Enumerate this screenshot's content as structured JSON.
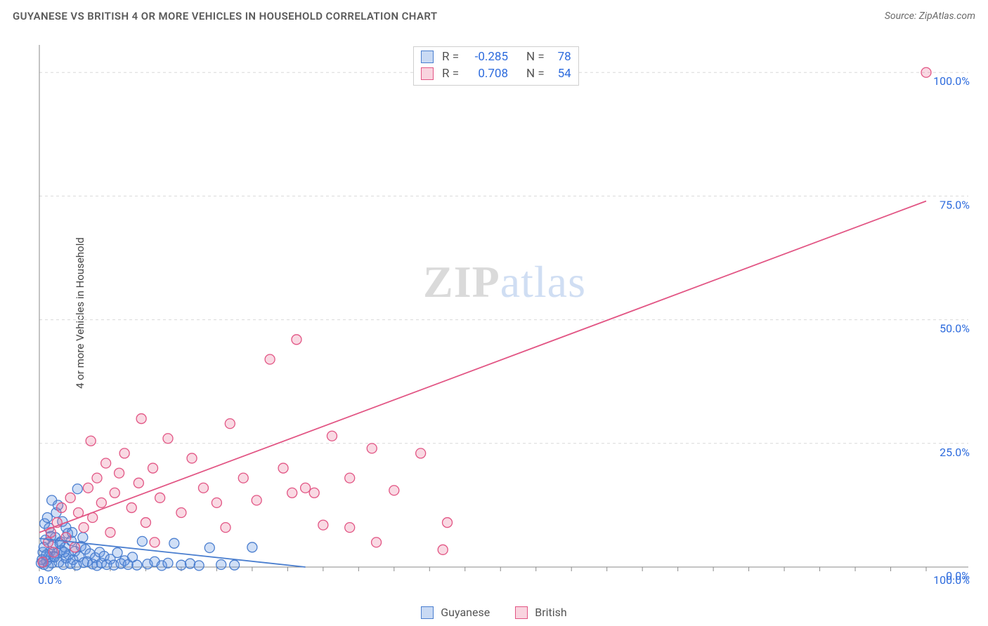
{
  "header": {
    "title": "GUYANESE VS BRITISH 4 OR MORE VEHICLES IN HOUSEHOLD CORRELATION CHART",
    "source_prefix": "Source: ",
    "source": "ZipAtlas.com"
  },
  "chart": {
    "type": "scatter",
    "xlim": [
      0,
      100
    ],
    "ylim": [
      0,
      105
    ],
    "y_ticks": [
      0,
      25,
      50,
      75,
      100
    ],
    "x_ticks": [
      0,
      100
    ],
    "y_tick_labels": [
      "0.0%",
      "25.0%",
      "50.0%",
      "75.0%",
      "100.0%"
    ],
    "x_tick_labels": [
      "0.0%",
      "100.0%"
    ],
    "x_minor_tick_step": 4,
    "y_axis_label": "4 or more Vehicles in Household",
    "tick_label_color": "#2d6bdd",
    "background_color": "#ffffff",
    "grid_color": "#d9d9d9",
    "axis_color": "#8a8a8a",
    "marker_radius": 7,
    "marker_stroke_width": 1.3,
    "marker_fill_opacity": 0.28,
    "line_width": 1.8,
    "watermark": {
      "part1": "ZIP",
      "part2": "atlas"
    },
    "stats_box": {
      "rows": [
        {
          "r_label": "R =",
          "r_value": "-0.285",
          "n_label": "N =",
          "n_value": "78",
          "color_fill": "rgba(99,150,224,0.35)",
          "color_stroke": "#4a7ecf"
        },
        {
          "r_label": "R =",
          "r_value": "0.708",
          "n_label": "N =",
          "n_value": "54",
          "color_fill": "rgba(235,120,155,0.32)",
          "color_stroke": "#e25584"
        }
      ]
    },
    "bottom_legend": [
      {
        "label": "Guyanese",
        "fill": "rgba(99,150,224,0.35)",
        "stroke": "#4a7ecf"
      },
      {
        "label": "British",
        "fill": "rgba(235,120,155,0.32)",
        "stroke": "#e25584"
      }
    ],
    "series": [
      {
        "name": "Guyanese",
        "stroke": "#4a7ecf",
        "fill": "rgba(99,150,224,0.30)",
        "regression": {
          "x1": 0,
          "y1": 5.8,
          "x2": 30,
          "y2": 0.0
        },
        "points": [
          [
            0.5,
            0.5
          ],
          [
            0.8,
            1.2
          ],
          [
            1.0,
            2.0
          ],
          [
            1.2,
            3.1
          ],
          [
            1.4,
            0.8
          ],
          [
            1.5,
            4.5
          ],
          [
            1.6,
            2.2
          ],
          [
            1.8,
            6.0
          ],
          [
            2.0,
            2.8
          ],
          [
            2.2,
            1.0
          ],
          [
            2.4,
            5.1
          ],
          [
            2.5,
            3.4
          ],
          [
            2.7,
            0.5
          ],
          [
            2.9,
            4.0
          ],
          [
            3.0,
            1.8
          ],
          [
            3.2,
            6.8
          ],
          [
            3.3,
            2.5
          ],
          [
            3.5,
            0.7
          ],
          [
            3.6,
            5.3
          ],
          [
            3.8,
            1.5
          ],
          [
            4.0,
            3.2
          ],
          [
            4.2,
            0.4
          ],
          [
            4.5,
            2.1
          ],
          [
            4.7,
            4.2
          ],
          [
            5.0,
            0.9
          ],
          [
            5.2,
            3.6
          ],
          [
            5.4,
            1.1
          ],
          [
            5.7,
            2.7
          ],
          [
            6.0,
            0.6
          ],
          [
            6.3,
            1.9
          ],
          [
            6.5,
            0.3
          ],
          [
            6.8,
            3.0
          ],
          [
            7.0,
            0.8
          ],
          [
            7.3,
            2.2
          ],
          [
            7.6,
            0.5
          ],
          [
            8.0,
            1.6
          ],
          [
            8.4,
            0.4
          ],
          [
            8.8,
            2.9
          ],
          [
            9.2,
            0.7
          ],
          [
            9.6,
            1.3
          ],
          [
            10.0,
            0.5
          ],
          [
            10.5,
            2.0
          ],
          [
            11.0,
            0.4
          ],
          [
            11.6,
            5.2
          ],
          [
            12.2,
            0.6
          ],
          [
            13.0,
            1.1
          ],
          [
            13.8,
            0.3
          ],
          [
            14.5,
            0.8
          ],
          [
            15.2,
            4.8
          ],
          [
            16.0,
            0.4
          ],
          [
            17.0,
            0.7
          ],
          [
            18.0,
            0.3
          ],
          [
            19.2,
            3.9
          ],
          [
            20.5,
            0.5
          ],
          [
            22.0,
            0.4
          ],
          [
            24.0,
            4.0
          ],
          [
            1.1,
            7.9
          ],
          [
            0.6,
            8.8
          ],
          [
            4.3,
            15.8
          ],
          [
            1.9,
            11.0
          ],
          [
            2.6,
            9.2
          ],
          [
            1.4,
            13.5
          ],
          [
            0.9,
            10.0
          ],
          [
            2.1,
            12.5
          ],
          [
            3.0,
            8.0
          ],
          [
            0.7,
            5.5
          ],
          [
            1.3,
            6.2
          ],
          [
            3.7,
            7.0
          ],
          [
            2.3,
            4.8
          ],
          [
            0.4,
            3.0
          ],
          [
            1.7,
            2.0
          ],
          [
            0.3,
            1.5
          ],
          [
            0.2,
            0.8
          ],
          [
            4.9,
            6.0
          ],
          [
            2.8,
            3.0
          ],
          [
            1.0,
            0.2
          ],
          [
            0.5,
            4.0
          ],
          [
            0.8,
            2.5
          ]
        ]
      },
      {
        "name": "British",
        "stroke": "#e25584",
        "fill": "rgba(235,120,155,0.28)",
        "regression": {
          "x1": 0,
          "y1": 7.0,
          "x2": 100,
          "y2": 74.0
        },
        "points": [
          [
            0.4,
            1.0
          ],
          [
            1.0,
            5.0
          ],
          [
            1.3,
            7.0
          ],
          [
            1.6,
            3.0
          ],
          [
            2.0,
            9.0
          ],
          [
            2.5,
            12.0
          ],
          [
            3.0,
            6.0
          ],
          [
            3.5,
            14.0
          ],
          [
            4.0,
            4.0
          ],
          [
            4.4,
            11.0
          ],
          [
            5.0,
            8.0
          ],
          [
            5.5,
            16.0
          ],
          [
            6.0,
            10.0
          ],
          [
            6.5,
            18.0
          ],
          [
            7.0,
            13.0
          ],
          [
            7.5,
            21.0
          ],
          [
            5.8,
            25.5
          ],
          [
            8.0,
            7.0
          ],
          [
            8.5,
            15.0
          ],
          [
            9.0,
            19.0
          ],
          [
            9.6,
            23.0
          ],
          [
            10.4,
            12.0
          ],
          [
            11.2,
            17.0
          ],
          [
            12.0,
            9.0
          ],
          [
            12.8,
            20.0
          ],
          [
            13.6,
            14.0
          ],
          [
            14.5,
            26.0
          ],
          [
            11.5,
            30.0
          ],
          [
            16.0,
            11.0
          ],
          [
            17.2,
            22.0
          ],
          [
            18.5,
            16.0
          ],
          [
            20.0,
            13.0
          ],
          [
            21.5,
            29.0
          ],
          [
            23.0,
            18.0
          ],
          [
            24.5,
            13.5
          ],
          [
            26.0,
            42.0
          ],
          [
            27.5,
            20.0
          ],
          [
            29.0,
            46.0
          ],
          [
            31.0,
            15.0
          ],
          [
            33.0,
            26.5
          ],
          [
            35.0,
            18.0
          ],
          [
            32.0,
            8.5
          ],
          [
            37.5,
            24.0
          ],
          [
            40.0,
            15.5
          ],
          [
            28.5,
            15.0
          ],
          [
            43.0,
            23.0
          ],
          [
            46.0,
            9.0
          ],
          [
            45.5,
            3.5
          ],
          [
            35.0,
            8.0
          ],
          [
            38.0,
            5.0
          ],
          [
            13.0,
            5.0
          ],
          [
            21.0,
            8.0
          ],
          [
            30.0,
            16.0
          ],
          [
            100.0,
            100.0
          ]
        ]
      }
    ]
  }
}
